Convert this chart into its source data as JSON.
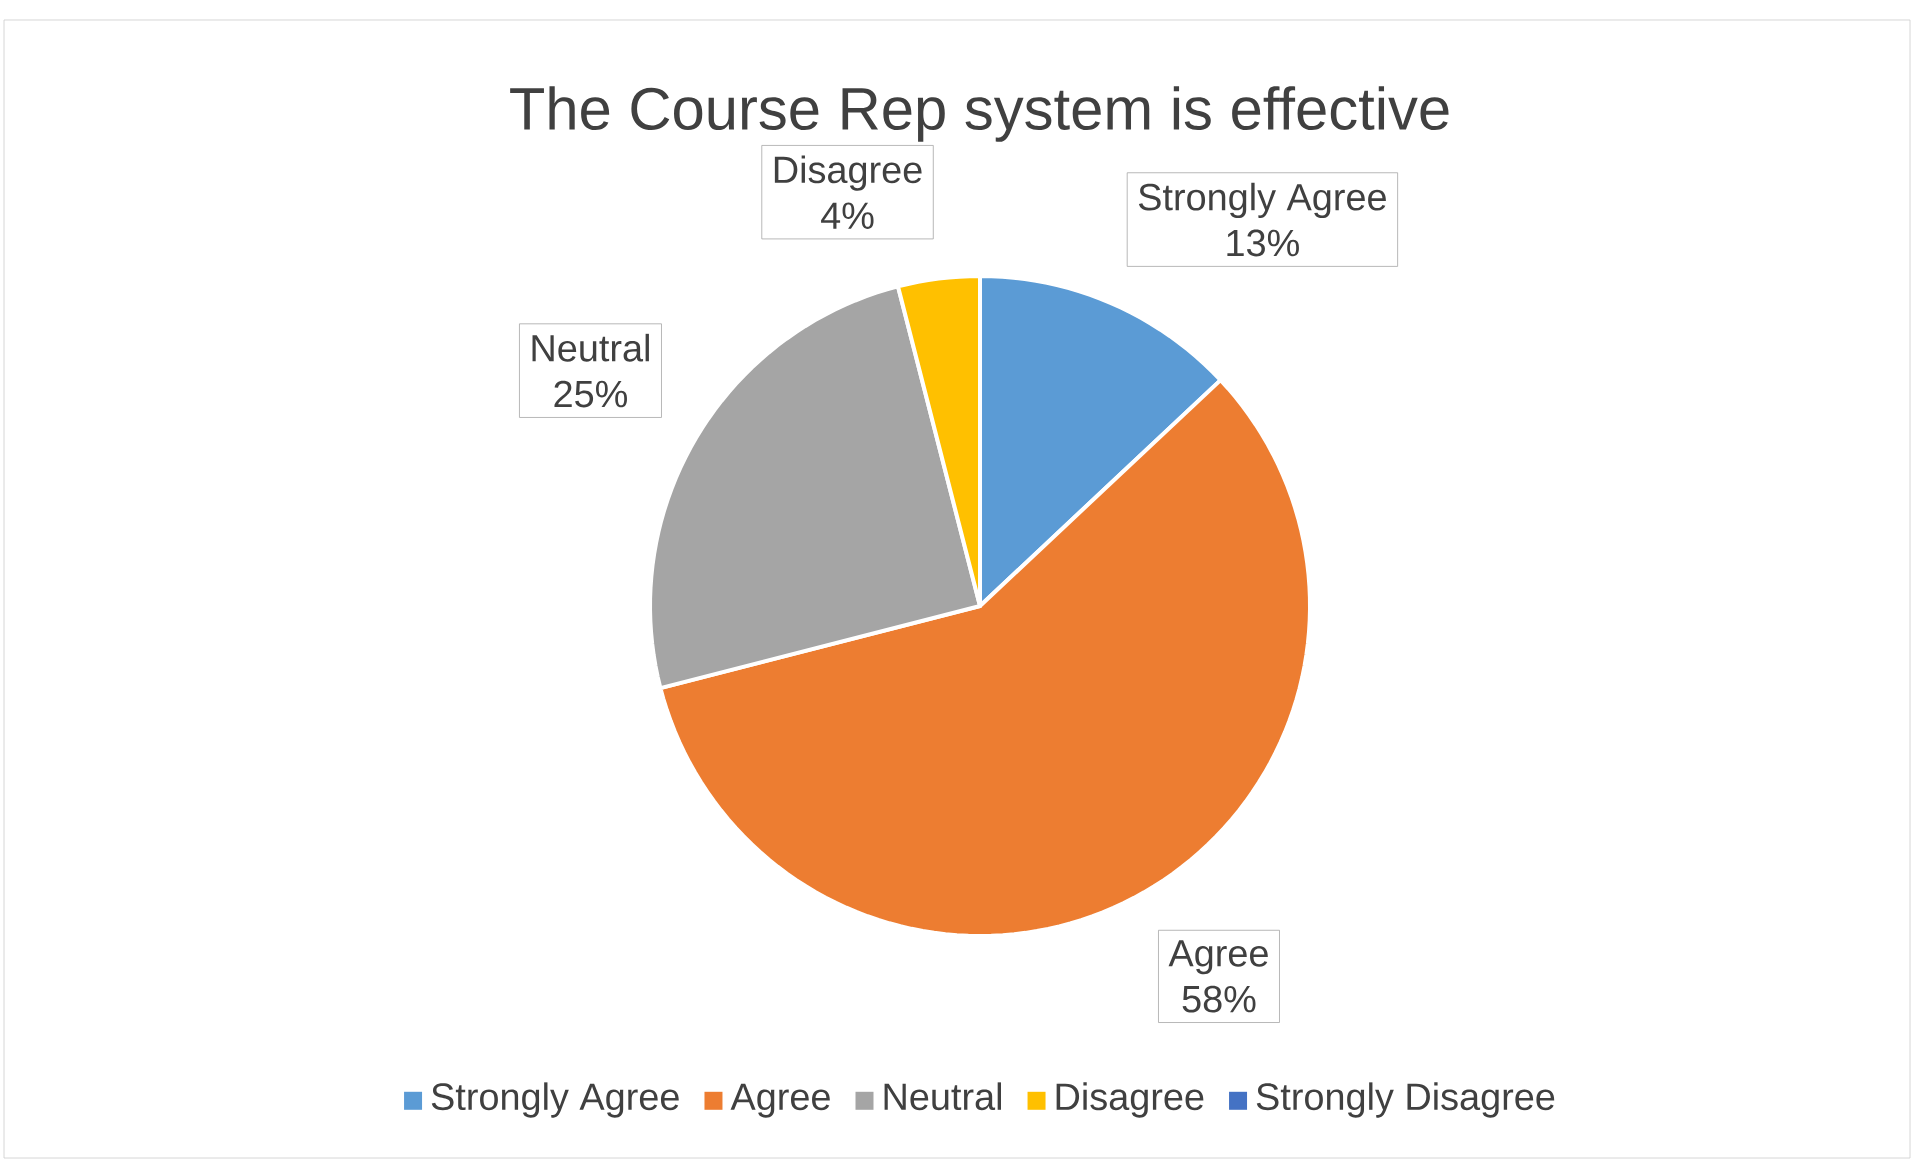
{
  "chart_data": {
    "type": "pie",
    "title": "The Course Rep system is effective",
    "categories": [
      "Strongly Agree",
      "Agree",
      "Neutral",
      "Disagree",
      "Strongly Disagree"
    ],
    "values": [
      13,
      58,
      25,
      4,
      0
    ],
    "value_labels": [
      "13%",
      "58%",
      "25%",
      "4%",
      null
    ],
    "colors": [
      "#5b9bd5",
      "#ed7d31",
      "#a5a5a5",
      "#ffc000",
      "#4472c4"
    ],
    "legend": "bottom"
  }
}
